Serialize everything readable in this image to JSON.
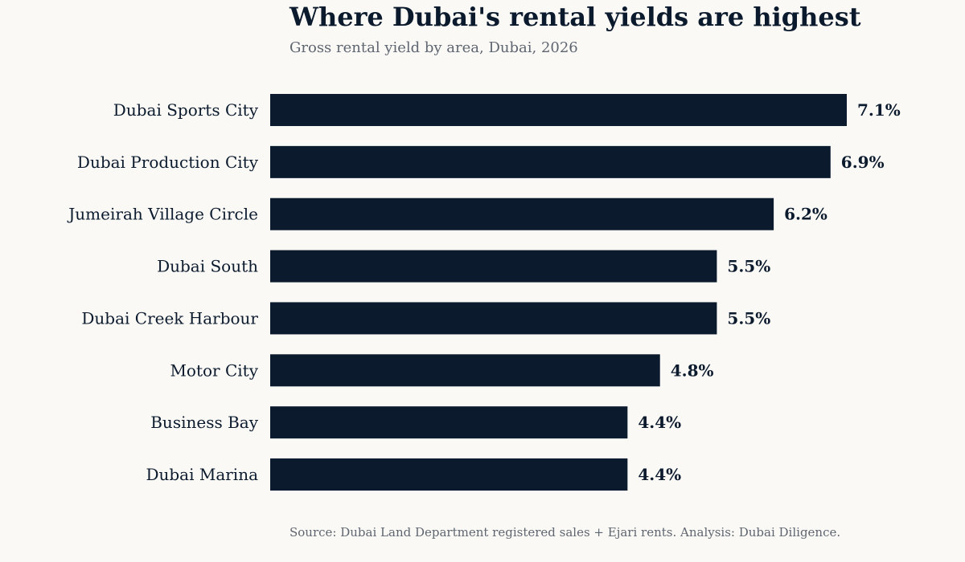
{
  "header": {
    "title": "Where Dubai's rental yields are highest",
    "subtitle": "Gross rental yield by area, Dubai, 2026"
  },
  "footer": {
    "source": "Source: Dubai Land Department registered sales + Ejari rents.  Analysis: Dubai Diligence."
  },
  "colors": {
    "bar": "#0b1a2c",
    "background": "#faf9f6",
    "muted_text": "#5f6670"
  },
  "chart_data": {
    "type": "bar",
    "orientation": "horizontal",
    "title": "Where Dubai's rental yields are highest",
    "subtitle": "Gross rental yield by area, Dubai, 2026",
    "categories": [
      "Dubai Sports City",
      "Dubai Production City",
      "Jumeirah Village Circle",
      "Dubai South",
      "Dubai Creek Harbour",
      "Motor City",
      "Business Bay",
      "Dubai Marina"
    ],
    "values": [
      7.1,
      6.9,
      6.2,
      5.5,
      5.5,
      4.8,
      4.4,
      4.4
    ],
    "value_labels": [
      "7.1%",
      "6.9%",
      "6.2%",
      "5.5%",
      "5.5%",
      "4.8%",
      "4.4%",
      "4.4%"
    ],
    "unit": "%",
    "xlim": [
      0,
      7.1
    ],
    "grid": false,
    "axes_visible": false
  }
}
